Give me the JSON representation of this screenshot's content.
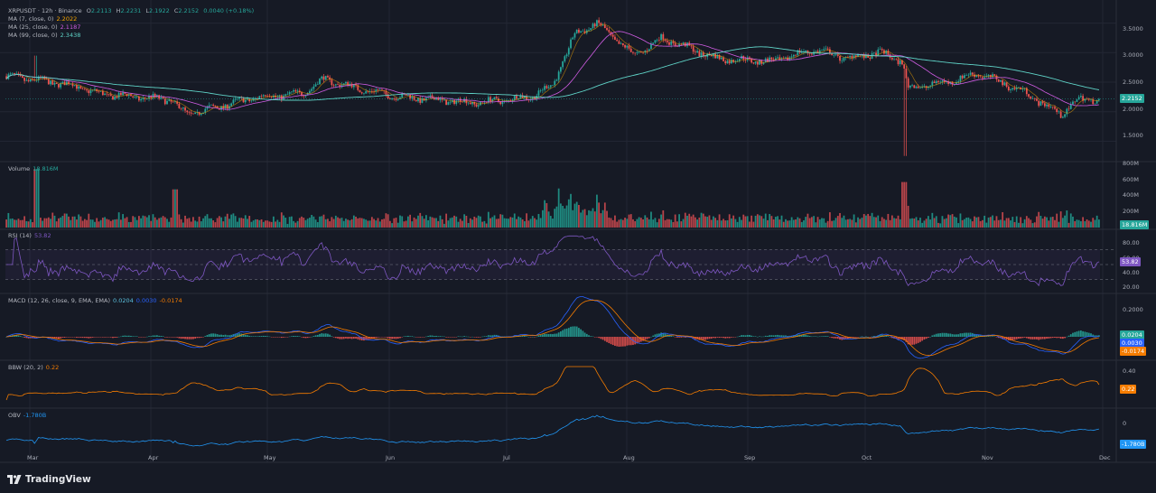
{
  "app": {
    "brand": "TradingView"
  },
  "header": {
    "symbol_line": "XRPUSDT · 12h · Binance",
    "ohlc": {
      "o_label": "O",
      "o": "2.2113",
      "h_label": "H",
      "h": "2.2231",
      "l_label": "L",
      "l": "2.1922",
      "c_label": "C",
      "c": "2.2152",
      "chg": "0.0040 (+0.18%)"
    }
  },
  "legends": {
    "ma7": {
      "label": "MA (7, close, 0)",
      "value": "2.2022",
      "color": "#f7a600"
    },
    "ma25": {
      "label": "MA (25, close, 0)",
      "value": "2.1187",
      "color": "#d05ce3"
    },
    "ma99": {
      "label": "MA (99, close, 0)",
      "value": "2.3438",
      "color": "#5fd3c7"
    },
    "volume": {
      "label": "Volume",
      "value": "18.816M",
      "color": "#26a69a"
    },
    "rsi": {
      "label": "RSI (14)",
      "value": "53.82",
      "color": "#7e57c2"
    },
    "macd": {
      "label": "MACD (12, 26, close, 9, EMA, EMA)",
      "v1": "0.0204",
      "v2": "0.0030",
      "v3": "-0.0174",
      "c1": "#5bc0de",
      "c2": "#2962ff",
      "c3": "#f57c00"
    },
    "bbw": {
      "label": "BBW (20, 2)",
      "value": "0.22",
      "color": "#f57c00"
    },
    "obv": {
      "label": "OBV",
      "value": "-1.780B",
      "color": "#2196f3"
    }
  },
  "axes": {
    "price_ticks": [
      "3.5000",
      "3.0000",
      "2.5000",
      "2.0000",
      "1.5000"
    ],
    "price_tag": "2.2152",
    "volume_ticks": [
      "800M",
      "600M",
      "400M",
      "200M"
    ],
    "volume_tag": "18.816M",
    "rsi_ticks": [
      "80.00",
      "60.00",
      "40.00",
      "20.00"
    ],
    "rsi_tag": "53.82",
    "macd_ticks": [
      "0.2000"
    ],
    "macd_tags": [
      "0.0204",
      "0.0030",
      "-0.0174"
    ],
    "bbw_ticks": [
      "0.40"
    ],
    "bbw_tag": "0.22",
    "obv_ticks": [
      "0"
    ],
    "obv_tag": "-1.780B",
    "months": [
      "Mar",
      "Apr",
      "May",
      "Jun",
      "Jul",
      "Aug",
      "Sep",
      "Oct",
      "Nov",
      "Dec"
    ]
  },
  "chart_data": {
    "type": "line",
    "symbol": "XRPUSDT",
    "interval": "12h",
    "exchange": "Binance",
    "x": [
      "Mar",
      "Apr",
      "May",
      "Jun",
      "Jul",
      "Aug",
      "Sep",
      "Oct",
      "Nov",
      "Dec"
    ],
    "price_key_points": [
      {
        "t": 0,
        "v": 2.6
      },
      {
        "t": 0.06,
        "v": 2.45
      },
      {
        "t": 0.085,
        "v": 2.3
      },
      {
        "t": 0.15,
        "v": 2.2
      },
      {
        "t": 0.165,
        "v": 1.95
      },
      {
        "t": 0.23,
        "v": 2.25
      },
      {
        "t": 0.27,
        "v": 2.3
      },
      {
        "t": 0.29,
        "v": 2.55
      },
      {
        "t": 0.32,
        "v": 2.4
      },
      {
        "t": 0.36,
        "v": 2.25
      },
      {
        "t": 0.43,
        "v": 2.15
      },
      {
        "t": 0.48,
        "v": 2.25
      },
      {
        "t": 0.5,
        "v": 2.45
      },
      {
        "t": 0.52,
        "v": 3.3
      },
      {
        "t": 0.54,
        "v": 3.5
      },
      {
        "t": 0.575,
        "v": 2.95
      },
      {
        "t": 0.6,
        "v": 3.25
      },
      {
        "t": 0.65,
        "v": 2.9
      },
      {
        "t": 0.7,
        "v": 2.85
      },
      {
        "t": 0.74,
        "v": 3.05
      },
      {
        "t": 0.77,
        "v": 2.9
      },
      {
        "t": 0.8,
        "v": 3.0
      },
      {
        "t": 0.82,
        "v": 2.85
      },
      {
        "t": 0.825,
        "v": 2.4
      },
      {
        "t": 0.86,
        "v": 2.5
      },
      {
        "t": 0.89,
        "v": 2.65
      },
      {
        "t": 0.93,
        "v": 2.35
      },
      {
        "t": 0.965,
        "v": 1.95
      },
      {
        "t": 0.98,
        "v": 2.2
      },
      {
        "t": 1.0,
        "v": 2.2152
      }
    ],
    "price_range": [
      1.2,
      3.8
    ],
    "last_close": 2.2152,
    "ma7_last": 2.2022,
    "ma25_last": 2.1187,
    "ma99_last": 2.3438,
    "volume_last_m": 18.816,
    "rsi_last": 53.82,
    "macd_last": {
      "macd": 0.0204,
      "signal": 0.003,
      "hist": -0.0174
    },
    "bbw_last": 0.22,
    "obv_last_b": -1.78
  }
}
